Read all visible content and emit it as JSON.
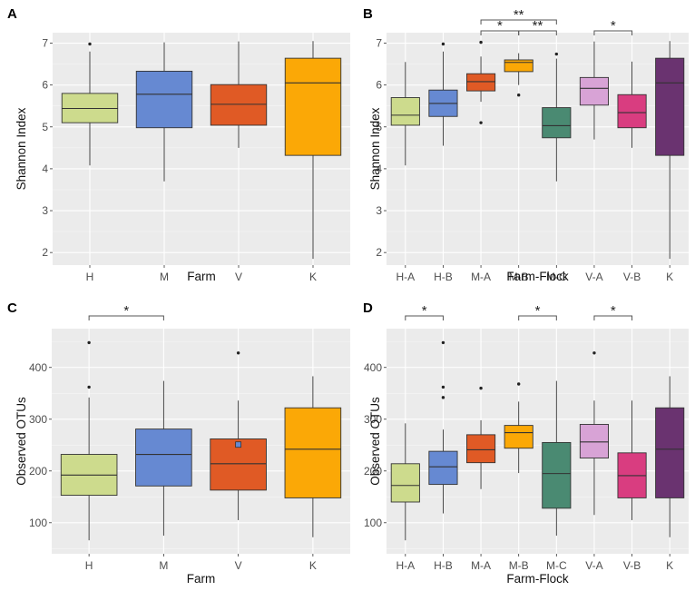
{
  "colors": {
    "H": "#cddb8d",
    "M": "#6689d2",
    "V": "#e05a25",
    "K": "#fba806",
    "H-A": "#cddb8d",
    "H-B": "#6689d2",
    "M-A": "#e05a25",
    "M-B": "#fba806",
    "M-C": "#4a8a72",
    "V-A": "#d8a3d6",
    "V-B": "#d93d80",
    "K-flock": "#6a3370"
  },
  "chart_data": [
    {
      "panel": "A",
      "type": "box",
      "xlabel": "Farm",
      "ylabel": "Shannon Index",
      "ylim": [
        1.7,
        7.25
      ],
      "yticks": [
        2,
        3,
        4,
        5,
        6,
        7
      ],
      "categories": [
        "H",
        "M",
        "V",
        "K"
      ],
      "boxes": [
        {
          "label": "H",
          "min": 4.08,
          "q1": 5.1,
          "median": 5.44,
          "q3": 5.8,
          "max": 6.8,
          "outliers": [
            6.98
          ],
          "color_key": "H"
        },
        {
          "label": "M",
          "min": 3.7,
          "q1": 4.98,
          "median": 5.78,
          "q3": 6.33,
          "max": 7.02,
          "outliers": [],
          "color_key": "M"
        },
        {
          "label": "V",
          "min": 4.5,
          "q1": 5.04,
          "median": 5.54,
          "q3": 6.01,
          "max": 7.04,
          "outliers": [],
          "color_key": "V"
        },
        {
          "label": "K",
          "min": 1.85,
          "q1": 4.32,
          "median": 6.05,
          "q3": 6.64,
          "max": 7.05,
          "outliers": [],
          "color_key": "K"
        }
      ],
      "significance": []
    },
    {
      "panel": "B",
      "type": "box",
      "xlabel": "Farm-Flock",
      "ylabel": "Shannon Index",
      "ylim": [
        1.7,
        7.25
      ],
      "yticks": [
        2,
        3,
        4,
        5,
        6,
        7
      ],
      "categories": [
        "H-A",
        "H-B",
        "M-A",
        "M-B",
        "M-C",
        "V-A",
        "V-B",
        "K"
      ],
      "boxes": [
        {
          "label": "H-A",
          "min": 4.08,
          "q1": 5.04,
          "median": 5.28,
          "q3": 5.7,
          "max": 6.55,
          "outliers": [],
          "color_key": "H-A"
        },
        {
          "label": "H-B",
          "min": 4.55,
          "q1": 5.25,
          "median": 5.56,
          "q3": 5.88,
          "max": 6.8,
          "outliers": [
            6.98
          ],
          "color_key": "H-B"
        },
        {
          "label": "M-A",
          "min": 5.6,
          "q1": 5.86,
          "median": 6.08,
          "q3": 6.27,
          "max": 6.68,
          "outliers": [
            5.1,
            7.02
          ],
          "color_key": "M-A"
        },
        {
          "label": "M-B",
          "min": 6.0,
          "q1": 6.32,
          "median": 6.54,
          "q3": 6.6,
          "max": 6.76,
          "outliers": [
            5.76
          ],
          "color_key": "M-B"
        },
        {
          "label": "M-C",
          "min": 3.7,
          "q1": 4.74,
          "median": 5.03,
          "q3": 5.46,
          "max": 6.63,
          "outliers": [
            6.74
          ],
          "color_key": "M-C"
        },
        {
          "label": "V-A",
          "min": 4.7,
          "q1": 5.52,
          "median": 5.92,
          "q3": 6.18,
          "max": 7.04,
          "outliers": [],
          "color_key": "V-A"
        },
        {
          "label": "V-B",
          "min": 4.5,
          "q1": 4.98,
          "median": 5.34,
          "q3": 5.77,
          "max": 6.56,
          "outliers": [],
          "color_key": "V-B"
        },
        {
          "label": "K",
          "min": 1.85,
          "q1": 4.32,
          "median": 6.05,
          "q3": 6.64,
          "max": 7.05,
          "outliers": [],
          "color_key": "K-flock"
        }
      ],
      "significance": [
        {
          "from": "M-A",
          "to": "M-C",
          "label": "**",
          "level": 0
        },
        {
          "from": "M-A",
          "to": "M-B",
          "label": "*",
          "level": 1
        },
        {
          "from": "M-B",
          "to": "M-C",
          "label": "**",
          "level": 1
        },
        {
          "from": "V-A",
          "to": "V-B",
          "label": "*",
          "level": 1
        }
      ]
    },
    {
      "panel": "C",
      "type": "box",
      "xlabel": "Farm",
      "ylabel": "Observed OTUs",
      "ylim": [
        40,
        475
      ],
      "yticks": [
        100,
        200,
        300,
        400
      ],
      "categories": [
        "H",
        "M",
        "V",
        "K"
      ],
      "boxes": [
        {
          "label": "H",
          "min": 66,
          "q1": 153,
          "median": 192,
          "q3": 232,
          "max": 342,
          "outliers": [
            362,
            448
          ],
          "color_key": "H"
        },
        {
          "label": "M",
          "min": 75,
          "q1": 171,
          "median": 232,
          "q3": 281,
          "max": 374,
          "outliers": [],
          "color_key": "M"
        },
        {
          "label": "V",
          "min": 105,
          "q1": 163,
          "median": 214,
          "q3": 262,
          "max": 336,
          "outliers": [
            428
          ],
          "color_key": "V"
        },
        {
          "label": "K",
          "min": 72,
          "q1": 148,
          "median": 242,
          "q3": 322,
          "max": 383,
          "outliers": [],
          "color_key": "K"
        }
      ],
      "marker": {
        "category": "V",
        "value": 251
      },
      "significance": [
        {
          "from": "H",
          "to": "M",
          "label": "*",
          "level": 0
        }
      ]
    },
    {
      "panel": "D",
      "type": "box",
      "xlabel": "Farm-Flock",
      "ylabel": "Observed OTUs",
      "ylim": [
        40,
        475
      ],
      "yticks": [
        100,
        200,
        300,
        400
      ],
      "categories": [
        "H-A",
        "H-B",
        "M-A",
        "M-B",
        "M-C",
        "V-A",
        "V-B",
        "K"
      ],
      "boxes": [
        {
          "label": "H-A",
          "min": 66,
          "q1": 140,
          "median": 172,
          "q3": 214,
          "max": 292,
          "outliers": [],
          "color_key": "H-A"
        },
        {
          "label": "H-B",
          "min": 118,
          "q1": 174,
          "median": 208,
          "q3": 238,
          "max": 280,
          "outliers": [
            342,
            362,
            448
          ],
          "color_key": "H-B"
        },
        {
          "label": "M-A",
          "min": 165,
          "q1": 216,
          "median": 241,
          "q3": 270,
          "max": 298,
          "outliers": [
            360
          ],
          "color_key": "M-A"
        },
        {
          "label": "M-B",
          "min": 196,
          "q1": 244,
          "median": 274,
          "q3": 288,
          "max": 334,
          "outliers": [
            368
          ],
          "color_key": "M-B"
        },
        {
          "label": "M-C",
          "min": 75,
          "q1": 128,
          "median": 195,
          "q3": 255,
          "max": 374,
          "outliers": [],
          "color_key": "M-C"
        },
        {
          "label": "V-A",
          "min": 115,
          "q1": 225,
          "median": 256,
          "q3": 290,
          "max": 336,
          "outliers": [
            428
          ],
          "color_key": "V-A"
        },
        {
          "label": "V-B",
          "min": 105,
          "q1": 148,
          "median": 191,
          "q3": 235,
          "max": 336,
          "outliers": [],
          "color_key": "V-B"
        },
        {
          "label": "K",
          "min": 72,
          "q1": 148,
          "median": 242,
          "q3": 322,
          "max": 383,
          "outliers": [],
          "color_key": "K-flock"
        }
      ],
      "significance": [
        {
          "from": "H-A",
          "to": "H-B",
          "label": "*",
          "level": 0
        },
        {
          "from": "M-B",
          "to": "M-C",
          "label": "*",
          "level": 0
        },
        {
          "from": "V-A",
          "to": "V-B",
          "label": "*",
          "level": 0
        }
      ]
    }
  ]
}
